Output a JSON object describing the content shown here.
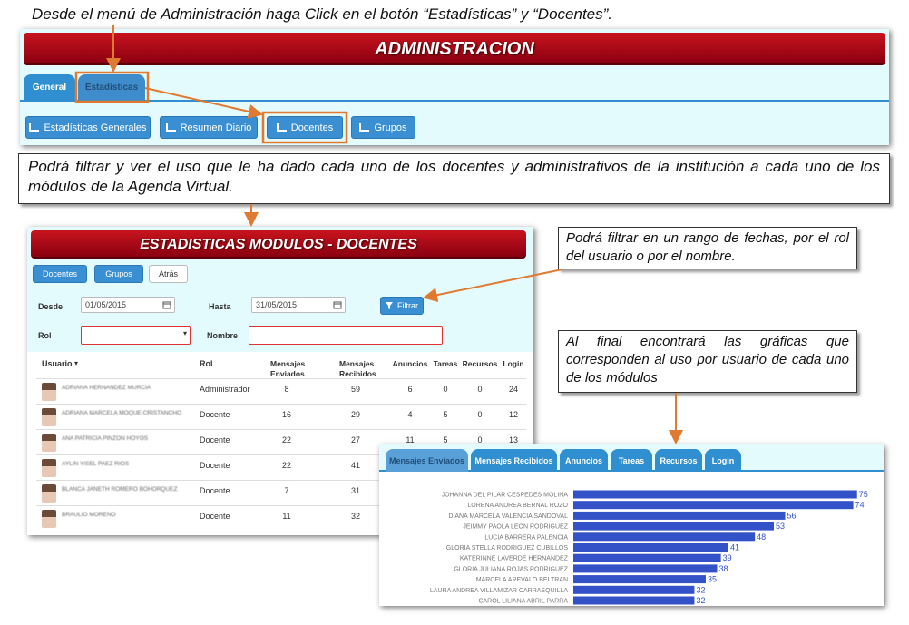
{
  "instruction_top": "Desde el menú de Administración haga Click en el botón  “Estadísticas” y “Docentes”.",
  "admin": {
    "title": "ADMINISTRACION",
    "tabs": [
      "General",
      "Estadísticas"
    ],
    "buttons": [
      "Estadísticas Generales",
      "Resumen Diario",
      "Docentes",
      "Grupos"
    ]
  },
  "note_1": "Podrá filtrar y ver el uso que le ha dado cada uno de los docentes y administrativos de la institución a cada uno de los módulos de la Agenda Virtual.",
  "stats": {
    "title": "ESTADISTICAS MODULOS - DOCENTES",
    "buttons": [
      "Docentes",
      "Grupos",
      "Atrás"
    ],
    "filters": {
      "desde_label": "Desde",
      "desde_value": "01/05/2015",
      "hasta_label": "Hasta",
      "hasta_value": "31/05/2015",
      "filter_button": "Filtrar",
      "rol_label": "Rol",
      "nombre_label": "Nombre"
    },
    "table": {
      "headers": [
        "Usuario",
        "Rol",
        "Mensajes Enviados",
        "Mensajes Recibidos",
        "Anuncios",
        "Tareas",
        "Recursos",
        "Login"
      ],
      "rows": [
        [
          "ADRIANA HERNANDEZ MURCIA",
          "Administrador",
          8,
          59,
          6,
          0,
          0,
          24
        ],
        [
          "ADRIANA MARCELA MOQUE CRISTANCHO",
          "Docente",
          16,
          29,
          4,
          5,
          0,
          12
        ],
        [
          "ANA PATRICIA PINZON HOYOS",
          "Docente",
          22,
          27,
          11,
          5,
          0,
          13
        ],
        [
          "AYLIN YISEL PAEZ RIOS",
          "Docente",
          22,
          41
        ],
        [
          "BLANCA JANETH ROMERO BOHORQUEZ",
          "Docente",
          7,
          31
        ],
        [
          "BRAULIO MORENO",
          "Docente",
          11,
          32
        ]
      ]
    }
  },
  "note_2": "Podrá filtrar en un rango de fechas, por el rol del usuario o por el nombre.",
  "note_3": "Al final encontrará las gráficas que corresponden al uso por usuario de cada uno de los módulos",
  "chart_data": {
    "type": "bar",
    "orientation": "horizontal",
    "tabs": [
      "Mensajes Enviados",
      "Mensajes Recibidos",
      "Anuncios",
      "Tareas",
      "Recursos",
      "Login"
    ],
    "categories": [
      "JOHANNA DEL PILAR CESPEDES MOLINA",
      "LORENA ANDREA BERNAL ROZO",
      "DIANA MARCELA VALENCIA SANDOVAL",
      "JEIMMY PAOLA LEON RODRIGUEZ",
      "LUCIA BARRERA PALENCIA",
      "GLORIA STELLA RODRIGUEZ CUBILLOS",
      "KATERINNE LAVERDE HERNANDEZ",
      "GLORIA JULIANA ROJAS RODRIGUEZ",
      "MARCELA AREVALO BELTRAN",
      "LAURA ANDREA VILLAMIZAR CARRASQUILLA",
      "CAROL LILIANA ABRIL PARRA"
    ],
    "values": [
      75,
      74,
      56,
      53,
      48,
      41,
      39,
      38,
      35,
      32,
      32
    ],
    "color": "#3352c8"
  }
}
